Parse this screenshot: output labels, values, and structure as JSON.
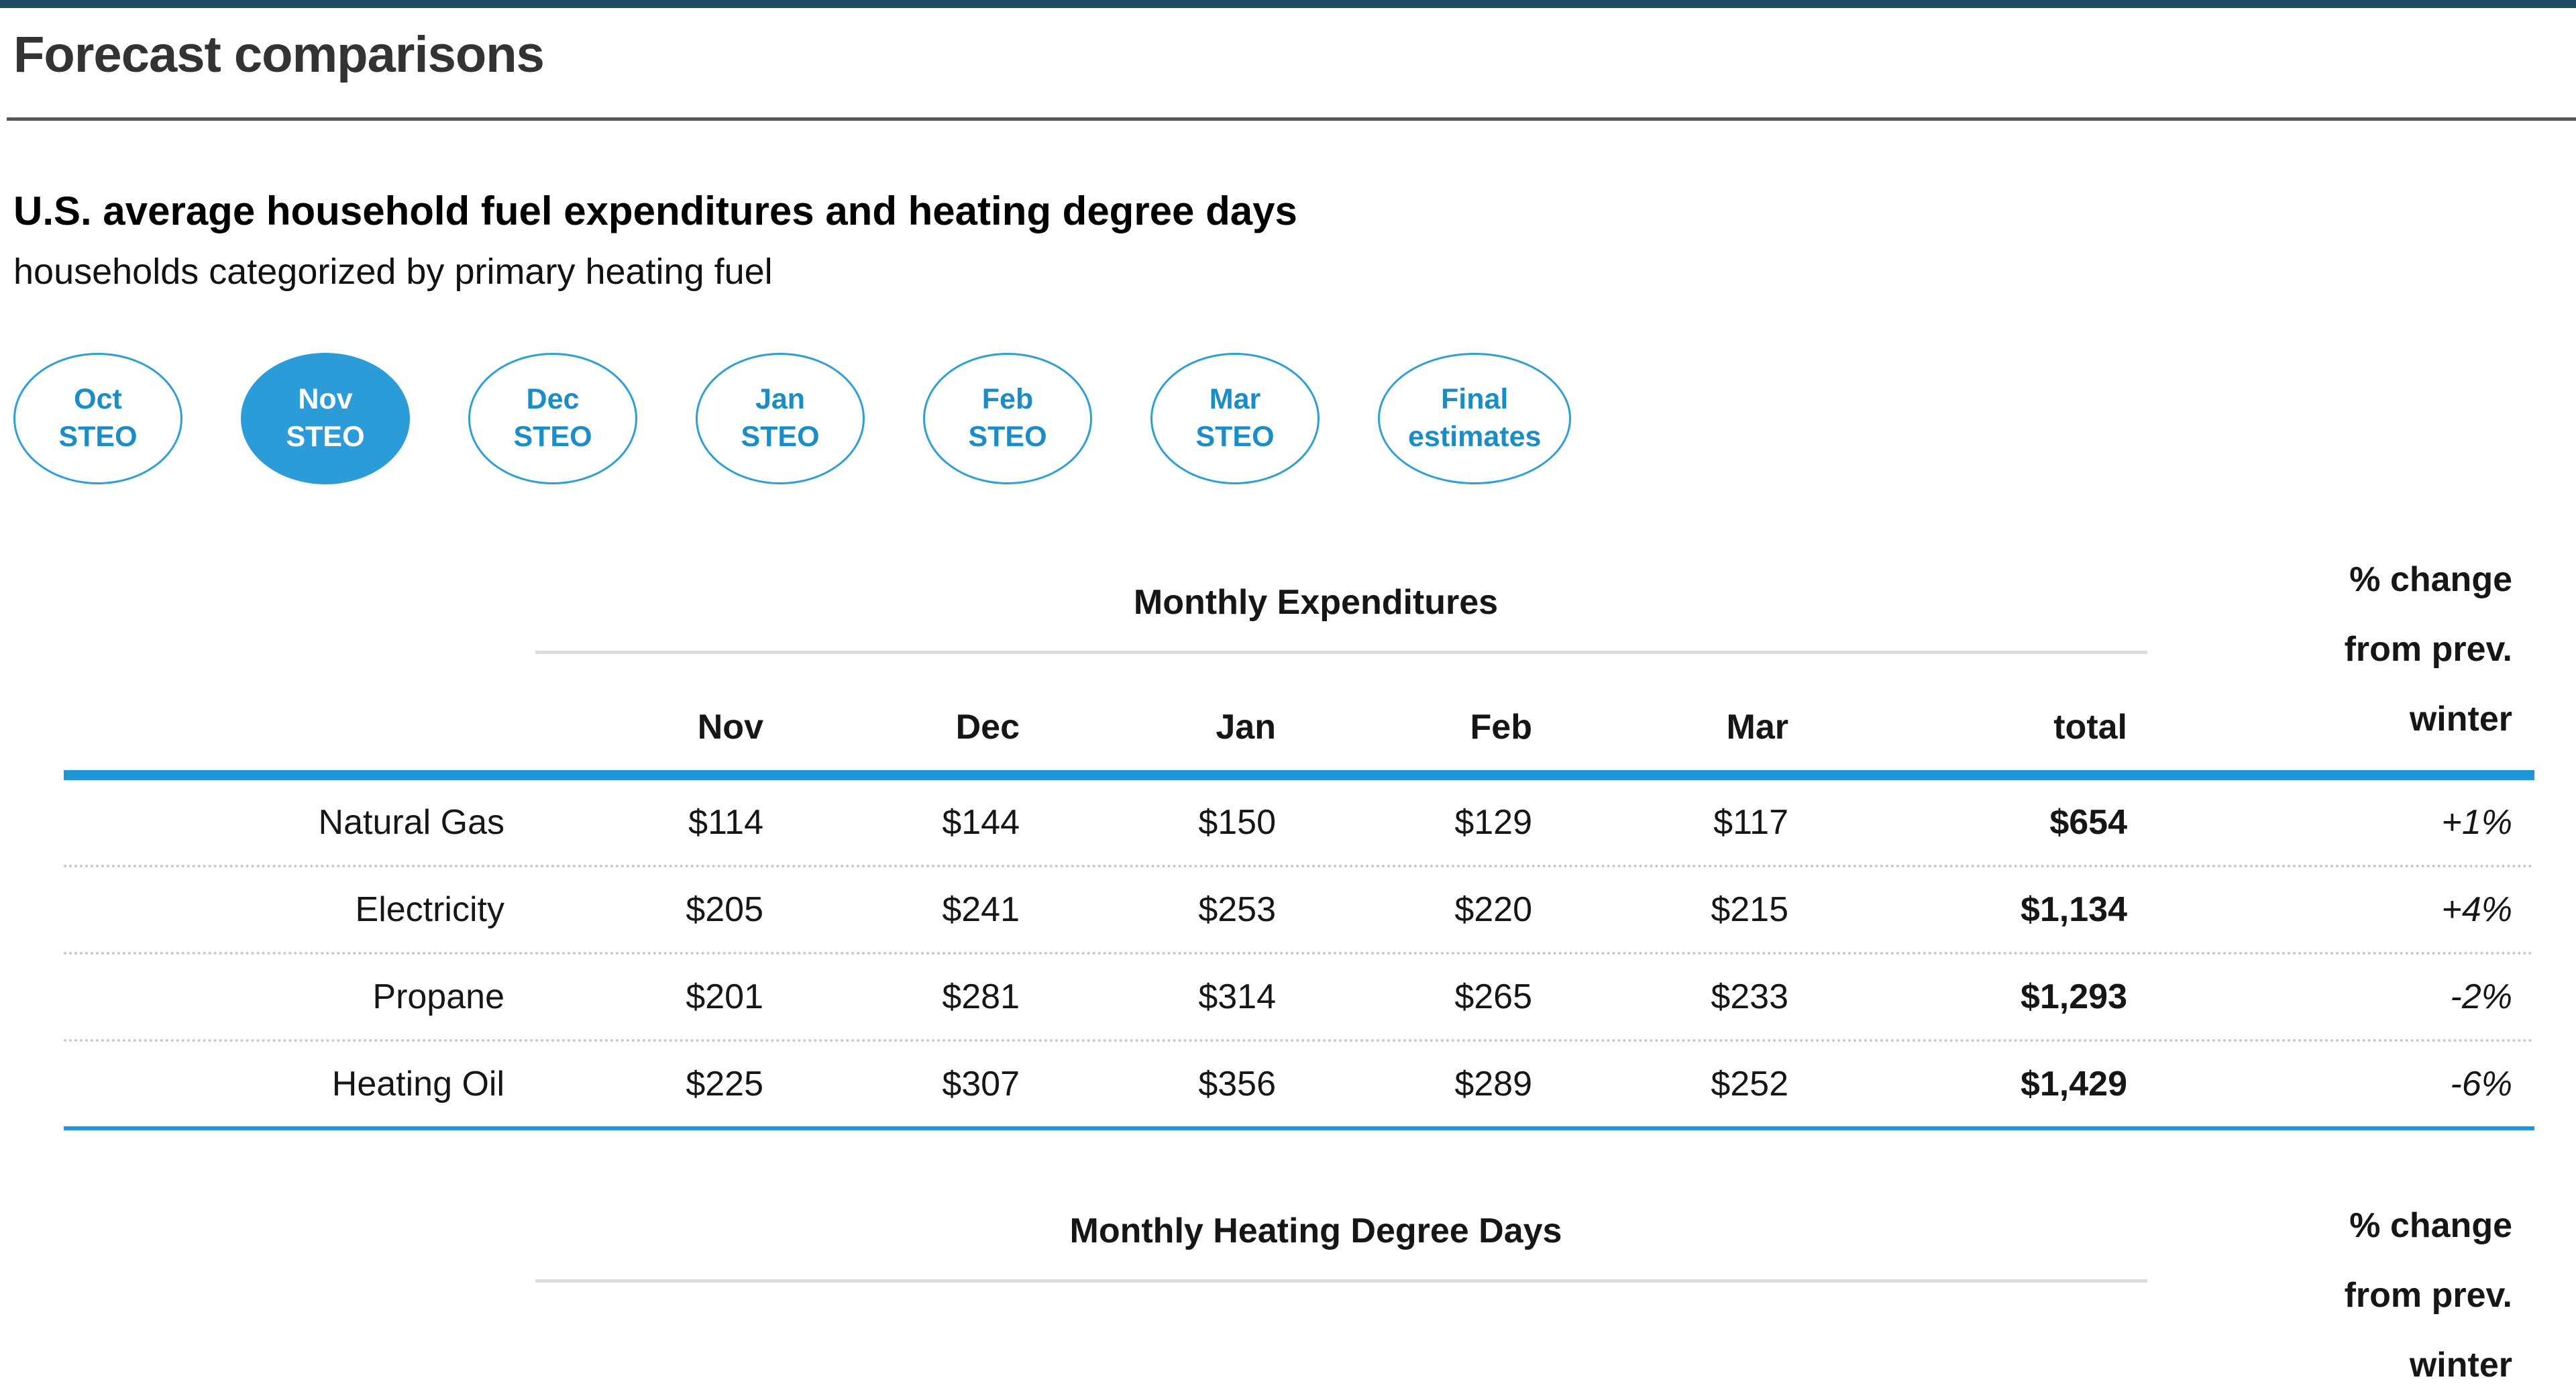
{
  "page": {
    "title": "Forecast comparisons",
    "section_heading": "U.S. average household fuel expenditures and heating degree days",
    "section_subheading": "households categorized by primary heating fuel"
  },
  "colors": {
    "top_bar_navy": "#1b4a63",
    "accent_blue": "#2196d7",
    "selected_pill_fill": "#2b9cd8",
    "pill_border_blue": "#2d9fd6",
    "pill_text_blue": "#1b8dc6",
    "divider_gray": "#575757",
    "table_underline_gray": "#dcdcdc"
  },
  "steo_selector": {
    "items": [
      {
        "line1": "Oct",
        "line2": "STEO",
        "selected": false
      },
      {
        "line1": "Nov",
        "line2": "STEO",
        "selected": true
      },
      {
        "line1": "Dec",
        "line2": "STEO",
        "selected": false
      },
      {
        "line1": "Jan",
        "line2": "STEO",
        "selected": false
      },
      {
        "line1": "Feb",
        "line2": "STEO",
        "selected": false
      },
      {
        "line1": "Mar",
        "line2": "STEO",
        "selected": false
      },
      {
        "line1": "Final",
        "line2": "estimates",
        "selected": false
      }
    ]
  },
  "expenditures_table": {
    "group_header": "Monthly Expenditures",
    "pct_header_lines": [
      "% change",
      "from prev.",
      "winter"
    ],
    "month_headers": [
      "Nov",
      "Dec",
      "Jan",
      "Feb",
      "Mar",
      "total"
    ],
    "rows": [
      {
        "label": "Natural Gas",
        "nov": "$114",
        "dec": "$144",
        "jan": "$150",
        "feb": "$129",
        "mar": "$117",
        "total": "$654",
        "pct": "+1%"
      },
      {
        "label": "Electricity",
        "nov": "$205",
        "dec": "$241",
        "jan": "$253",
        "feb": "$220",
        "mar": "$215",
        "total": "$1,134",
        "pct": "+4%"
      },
      {
        "label": "Propane",
        "nov": "$201",
        "dec": "$281",
        "jan": "$314",
        "feb": "$265",
        "mar": "$233",
        "total": "$1,293",
        "pct": "-2%"
      },
      {
        "label": "Heating Oil",
        "nov": "$225",
        "dec": "$307",
        "jan": "$356",
        "feb": "$289",
        "mar": "$252",
        "total": "$1,429",
        "pct": "-6%"
      }
    ]
  },
  "hdd_table": {
    "group_header": "Monthly Heating Degree Days",
    "pct_header_lines": [
      "% change",
      "from prev.",
      "winter"
    ]
  },
  "chart_data": {
    "type": "table",
    "title": "U.S. average household fuel expenditures and heating degree days",
    "subtitle": "households categorized by primary heating fuel",
    "group_header": "Monthly Expenditures",
    "columns": [
      "fuel",
      "Nov",
      "Dec",
      "Jan",
      "Feb",
      "Mar",
      "total",
      "% change from prev. winter"
    ],
    "rows": [
      [
        "Natural Gas",
        114,
        144,
        150,
        129,
        117,
        654,
        "+1%"
      ],
      [
        "Electricity",
        205,
        241,
        253,
        220,
        215,
        1134,
        "+4%"
      ],
      [
        "Propane",
        201,
        281,
        314,
        265,
        233,
        1293,
        "-2%"
      ],
      [
        "Heating Oil",
        225,
        307,
        356,
        289,
        252,
        1429,
        "-6%"
      ]
    ],
    "second_table_header_visible": "Monthly Heating Degree Days"
  }
}
